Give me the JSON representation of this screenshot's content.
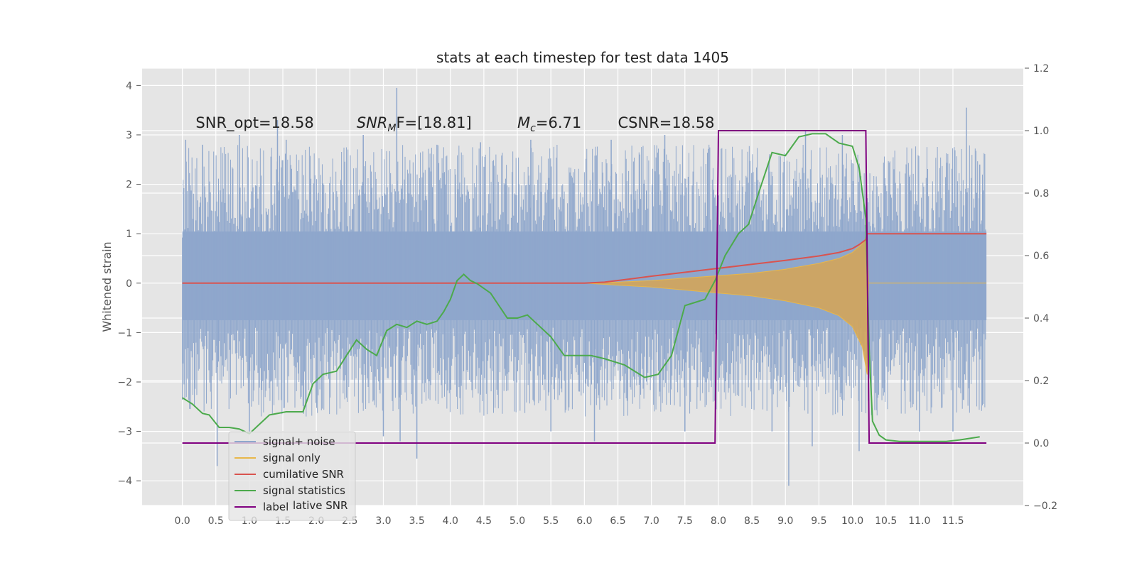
{
  "chart_data": {
    "type": "line",
    "title": "stats at each timestep for test data 1405",
    "ylabel": "Whitened strain",
    "xlabel": "",
    "xlim": [
      -0.6,
      12.55
    ],
    "ylim": [
      -4.5,
      4.35
    ],
    "y2lim": [
      -0.2,
      1.2
    ],
    "x_ticks": [
      "0.0",
      "0.5",
      "1.0",
      "1.5",
      "2.0",
      "2.5",
      "3.0",
      "3.5",
      "4.0",
      "4.5",
      "5.0",
      "5.5",
      "6.0",
      "6.5",
      "7.0",
      "7.5",
      "8.0",
      "8.5",
      "9.0",
      "9.5",
      "10.0",
      "10.5",
      "11.0",
      "11.5"
    ],
    "y_ticks": [
      "4",
      "3",
      "2",
      "1",
      "0",
      "−1",
      "−2",
      "−3",
      "−4"
    ],
    "y2_ticks": [
      "1.2",
      "1.0",
      "0.8",
      "0.6",
      "0.4",
      "0.2",
      "0.0",
      "−0.2"
    ],
    "grid": true,
    "legend_position": "lower-left",
    "annotations": [
      {
        "prefix": "SNR_opt=18.58",
        "sub": "",
        "suffix": "",
        "x": 0.2
      },
      {
        "prefix": "SNR",
        "sub": "M",
        "suffix": "F=[18.81]",
        "x": 2.6
      },
      {
        "prefix": "M",
        "sub": "c",
        "suffix": "=6.71",
        "x": 5.0
      },
      {
        "prefix": "CSNR=18.58",
        "sub": "",
        "suffix": "",
        "x": 6.5
      }
    ],
    "legend": [
      "signal+ noise",
      "signal only",
      "cumilative SNR",
      "signal statistics",
      "label"
    ],
    "legend_overlap_text": "lative SNR",
    "series": [
      {
        "name": "signal+ noise",
        "axis": "left",
        "color": "#8fa7cc",
        "x_range": [
          0.0,
          12.0
        ],
        "envelope_upper": 1.9,
        "envelope_lower": -1.5,
        "spikes": [
          {
            "x": 0.05,
            "y": 2.9
          },
          {
            "x": 0.3,
            "y": 2.8
          },
          {
            "x": 0.52,
            "y": -3.7
          },
          {
            "x": 0.85,
            "y": 3.0
          },
          {
            "x": 1.0,
            "y": -3.0
          },
          {
            "x": 1.42,
            "y": 3.3
          },
          {
            "x": 1.55,
            "y": 2.9
          },
          {
            "x": 2.7,
            "y": 3.0
          },
          {
            "x": 3.0,
            "y": -3.1
          },
          {
            "x": 3.2,
            "y": 3.95
          },
          {
            "x": 3.25,
            "y": -3.2
          },
          {
            "x": 3.5,
            "y": -3.55
          },
          {
            "x": 3.8,
            "y": 2.8
          },
          {
            "x": 4.45,
            "y": 2.85
          },
          {
            "x": 5.2,
            "y": 2.9
          },
          {
            "x": 5.5,
            "y": -3.0
          },
          {
            "x": 6.15,
            "y": -3.2
          },
          {
            "x": 6.4,
            "y": 2.9
          },
          {
            "x": 7.2,
            "y": 3.0
          },
          {
            "x": 7.5,
            "y": -3.0
          },
          {
            "x": 8.8,
            "y": -3.0
          },
          {
            "x": 9.05,
            "y": -4.1
          },
          {
            "x": 9.3,
            "y": 3.1
          },
          {
            "x": 9.4,
            "y": -3.3
          },
          {
            "x": 9.85,
            "y": 3.0
          },
          {
            "x": 10.1,
            "y": -3.4
          },
          {
            "x": 11.0,
            "y": -3.0
          },
          {
            "x": 11.5,
            "y": -3.0
          },
          {
            "x": 11.7,
            "y": 3.55
          },
          {
            "x": 11.9,
            "y": 2.4
          }
        ]
      },
      {
        "name": "signal only",
        "axis": "left",
        "color": "#e8b74a",
        "x": [
          0.0,
          6.0,
          6.5,
          7.0,
          7.5,
          8.0,
          8.5,
          9.0,
          9.5,
          9.8,
          10.0,
          10.15,
          10.22,
          10.24,
          12.0
        ],
        "upper": [
          0.0,
          0.0,
          0.02,
          0.05,
          0.1,
          0.15,
          0.2,
          0.28,
          0.4,
          0.5,
          0.62,
          0.8,
          0.95,
          0.0,
          0.0
        ],
        "lower": [
          0.0,
          0.0,
          -0.04,
          -0.08,
          -0.14,
          -0.2,
          -0.26,
          -0.36,
          -0.5,
          -0.66,
          -0.88,
          -1.3,
          -1.85,
          0.0,
          0.0
        ]
      },
      {
        "name": "cumilative SNR",
        "axis": "left",
        "color": "#d9534f",
        "x": [
          0.0,
          1.0,
          2.0,
          3.0,
          4.0,
          5.0,
          6.0,
          6.3,
          6.6,
          7.0,
          7.5,
          8.0,
          8.5,
          9.0,
          9.5,
          9.8,
          10.0,
          10.1,
          10.2,
          10.21,
          12.0
        ],
        "y": [
          0.0,
          0.0,
          0.0,
          0.0,
          0.0,
          0.0,
          0.0,
          0.02,
          0.07,
          0.14,
          0.22,
          0.3,
          0.38,
          0.46,
          0.55,
          0.62,
          0.7,
          0.78,
          0.88,
          1.0,
          1.0
        ]
      },
      {
        "name": "signal statistics",
        "axis": "right",
        "color": "#4caa4c",
        "x": [
          0.0,
          0.15,
          0.3,
          0.4,
          0.55,
          0.7,
          0.85,
          1.0,
          1.15,
          1.3,
          1.55,
          1.8,
          1.95,
          2.1,
          2.3,
          2.45,
          2.6,
          2.75,
          2.9,
          3.05,
          3.2,
          3.35,
          3.5,
          3.65,
          3.8,
          3.9,
          4.0,
          4.1,
          4.2,
          4.3,
          4.4,
          4.6,
          4.85,
          5.0,
          5.15,
          5.3,
          5.5,
          5.7,
          5.9,
          6.1,
          6.3,
          6.6,
          6.9,
          7.1,
          7.3,
          7.5,
          7.65,
          7.8,
          7.95,
          8.1,
          8.3,
          8.45,
          8.6,
          8.8,
          9.0,
          9.2,
          9.4,
          9.6,
          9.8,
          10.0,
          10.1,
          10.2,
          10.25,
          10.3,
          10.4,
          10.5,
          10.7,
          11.0,
          11.4,
          11.6,
          11.9
        ],
        "y": [
          0.145,
          0.125,
          0.095,
          0.09,
          0.05,
          0.05,
          0.045,
          0.03,
          0.06,
          0.09,
          0.1,
          0.1,
          0.19,
          0.22,
          0.23,
          0.28,
          0.33,
          0.3,
          0.28,
          0.36,
          0.38,
          0.37,
          0.39,
          0.38,
          0.39,
          0.42,
          0.46,
          0.52,
          0.54,
          0.52,
          0.51,
          0.48,
          0.4,
          0.4,
          0.41,
          0.38,
          0.34,
          0.28,
          0.28,
          0.28,
          0.27,
          0.25,
          0.21,
          0.22,
          0.28,
          0.44,
          0.45,
          0.46,
          0.52,
          0.6,
          0.67,
          0.7,
          0.8,
          0.93,
          0.92,
          0.98,
          0.99,
          0.99,
          0.96,
          0.95,
          0.88,
          0.72,
          0.3,
          0.07,
          0.025,
          0.01,
          0.005,
          0.005,
          0.005,
          0.01,
          0.02
        ]
      },
      {
        "name": "label",
        "axis": "right",
        "color": "#800080",
        "x": [
          0.0,
          7.95,
          8.0,
          10.2,
          10.25,
          12.0
        ],
        "y": [
          0.0,
          0.0,
          1.0,
          1.0,
          0.0,
          0.0
        ]
      }
    ]
  }
}
